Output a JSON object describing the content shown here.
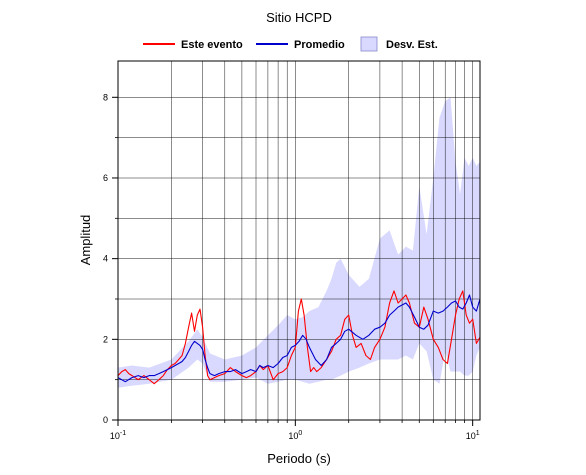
{
  "chart_data": {
    "type": "line",
    "title": "Sitio HCPD",
    "xlabel": "Periodo (s)",
    "ylabel": "Amplitud",
    "xscale": "log",
    "xlim": [
      0.1,
      11
    ],
    "ylim": [
      0,
      8.9
    ],
    "grid": true,
    "legend_position": "top-center",
    "x_ticks": [
      {
        "value": 0.1,
        "base": "10",
        "exp": "-1"
      },
      {
        "value": 1,
        "base": "10",
        "exp": "0"
      },
      {
        "value": 10,
        "base": "10",
        "exp": "1"
      }
    ],
    "y_ticks": [
      {
        "value": 0,
        "label": "0"
      },
      {
        "value": 2,
        "label": "2"
      },
      {
        "value": 4,
        "label": "4"
      },
      {
        "value": 6,
        "label": "6"
      },
      {
        "value": 8,
        "label": "8"
      }
    ],
    "legend": {
      "este_evento": "Este evento",
      "promedio": "Promedio",
      "desv": "Desv. Est."
    },
    "colors": {
      "este_evento": "#ff0000",
      "promedio": "#0000cc",
      "band": "#d9d9ff",
      "grid": "#000000"
    },
    "band": {
      "name": "Desv. Est.",
      "x": [
        0.1,
        0.12,
        0.15,
        0.2,
        0.25,
        0.28,
        0.3,
        0.33,
        0.4,
        0.5,
        0.6,
        0.7,
        0.8,
        0.9,
        1.0,
        1.1,
        1.2,
        1.35,
        1.5,
        1.6,
        1.7,
        1.8,
        2.0,
        2.3,
        2.6,
        3.0,
        3.4,
        3.8,
        4.2,
        4.6,
        5.0,
        5.5,
        6.0,
        6.5,
        7.0,
        7.5,
        8.0,
        8.5,
        9.0,
        9.5,
        10.0,
        10.5,
        11.0
      ],
      "upper": [
        1.3,
        1.35,
        1.3,
        1.5,
        1.95,
        2.25,
        2.05,
        1.65,
        1.5,
        1.6,
        1.8,
        2.1,
        2.35,
        2.6,
        2.5,
        2.55,
        2.7,
        2.8,
        3.2,
        3.5,
        3.9,
        4.0,
        3.6,
        3.3,
        3.5,
        4.5,
        4.7,
        4.1,
        4.3,
        4.2,
        5.8,
        4.6,
        6.0,
        7.5,
        7.9,
        8.0,
        6.4,
        5.6,
        6.5,
        6.3,
        6.5,
        6.3,
        6.4
      ],
      "lower": [
        0.8,
        0.85,
        0.9,
        1.0,
        1.3,
        1.5,
        1.4,
        0.95,
        0.95,
        1.0,
        1.05,
        0.9,
        0.95,
        1.0,
        1.0,
        0.95,
        0.9,
        0.95,
        1.0,
        1.0,
        1.05,
        1.1,
        1.2,
        1.3,
        1.4,
        1.5,
        1.5,
        1.5,
        1.6,
        1.5,
        1.9,
        1.7,
        1.0,
        0.9,
        1.7,
        1.2,
        1.2,
        1.2,
        1.1,
        1.1,
        1.2,
        1.6,
        1.8
      ]
    },
    "series": [
      {
        "name": "Este evento",
        "color": "#ff0000",
        "x": [
          0.1,
          0.105,
          0.11,
          0.115,
          0.12,
          0.13,
          0.14,
          0.15,
          0.16,
          0.17,
          0.18,
          0.19,
          0.2,
          0.21,
          0.22,
          0.23,
          0.24,
          0.25,
          0.26,
          0.27,
          0.28,
          0.29,
          0.3,
          0.31,
          0.32,
          0.33,
          0.35,
          0.37,
          0.4,
          0.43,
          0.46,
          0.5,
          0.53,
          0.56,
          0.6,
          0.63,
          0.66,
          0.7,
          0.75,
          0.8,
          0.85,
          0.9,
          0.95,
          1.0,
          1.04,
          1.08,
          1.12,
          1.17,
          1.22,
          1.27,
          1.32,
          1.4,
          1.5,
          1.6,
          1.7,
          1.8,
          1.9,
          2.0,
          2.1,
          2.2,
          2.35,
          2.5,
          2.65,
          2.8,
          3.0,
          3.2,
          3.4,
          3.6,
          3.8,
          4.0,
          4.2,
          4.4,
          4.7,
          5.0,
          5.3,
          5.6,
          6.0,
          6.4,
          6.8,
          7.2,
          7.6,
          8.0,
          8.4,
          8.8,
          9.2,
          9.6,
          10.0,
          10.5,
          11.0
        ],
        "y": [
          1.1,
          1.2,
          1.25,
          1.15,
          1.1,
          1.0,
          1.1,
          1.0,
          0.9,
          1.0,
          1.1,
          1.25,
          1.35,
          1.4,
          1.5,
          1.6,
          1.9,
          2.3,
          2.65,
          2.2,
          2.6,
          2.75,
          2.3,
          1.6,
          1.1,
          1.0,
          1.05,
          1.1,
          1.15,
          1.3,
          1.2,
          1.1,
          1.05,
          1.1,
          1.2,
          1.35,
          1.25,
          1.35,
          1.0,
          1.15,
          1.2,
          1.3,
          1.6,
          1.8,
          2.7,
          3.0,
          2.6,
          1.8,
          1.2,
          1.3,
          1.2,
          1.3,
          1.5,
          1.7,
          2.0,
          2.1,
          2.5,
          2.6,
          2.1,
          1.8,
          1.9,
          1.6,
          1.5,
          1.8,
          2.0,
          2.3,
          2.9,
          3.2,
          2.9,
          3.0,
          3.1,
          2.9,
          2.4,
          2.3,
          2.8,
          2.5,
          2.0,
          1.8,
          1.5,
          1.4,
          2.0,
          2.6,
          3.0,
          3.2,
          2.6,
          2.4,
          2.5,
          1.9,
          2.05
        ]
      },
      {
        "name": "Promedio",
        "color": "#0000cc",
        "x": [
          0.1,
          0.11,
          0.12,
          0.13,
          0.14,
          0.15,
          0.16,
          0.17,
          0.18,
          0.19,
          0.2,
          0.21,
          0.22,
          0.23,
          0.24,
          0.25,
          0.26,
          0.27,
          0.28,
          0.29,
          0.3,
          0.31,
          0.32,
          0.33,
          0.35,
          0.37,
          0.4,
          0.43,
          0.46,
          0.5,
          0.53,
          0.56,
          0.6,
          0.63,
          0.66,
          0.7,
          0.75,
          0.8,
          0.85,
          0.9,
          0.95,
          1.0,
          1.05,
          1.1,
          1.15,
          1.2,
          1.3,
          1.4,
          1.5,
          1.6,
          1.7,
          1.8,
          1.9,
          2.0,
          2.2,
          2.4,
          2.6,
          2.8,
          3.0,
          3.2,
          3.4,
          3.6,
          3.8,
          4.0,
          4.2,
          4.4,
          4.7,
          5.0,
          5.3,
          5.6,
          6.0,
          6.4,
          6.8,
          7.2,
          7.6,
          8.0,
          8.4,
          8.8,
          9.2,
          9.6,
          10.0,
          10.5,
          11.0
        ],
        "y": [
          1.05,
          0.95,
          1.05,
          1.1,
          1.05,
          1.1,
          1.1,
          1.15,
          1.2,
          1.25,
          1.3,
          1.35,
          1.4,
          1.45,
          1.55,
          1.7,
          1.85,
          1.95,
          1.9,
          1.85,
          1.75,
          1.5,
          1.3,
          1.15,
          1.1,
          1.15,
          1.2,
          1.2,
          1.25,
          1.15,
          1.2,
          1.25,
          1.2,
          1.35,
          1.3,
          1.35,
          1.3,
          1.4,
          1.55,
          1.6,
          1.8,
          1.85,
          1.95,
          2.1,
          2.0,
          1.8,
          1.5,
          1.35,
          1.5,
          1.8,
          1.9,
          2.0,
          2.2,
          2.25,
          2.1,
          2.0,
          2.1,
          2.25,
          2.3,
          2.4,
          2.6,
          2.7,
          2.8,
          2.85,
          2.9,
          2.8,
          2.55,
          2.3,
          2.25,
          2.35,
          2.7,
          2.65,
          2.7,
          2.8,
          2.9,
          2.95,
          2.8,
          2.75,
          2.9,
          3.1,
          2.8,
          2.7,
          3.0
        ]
      }
    ]
  }
}
